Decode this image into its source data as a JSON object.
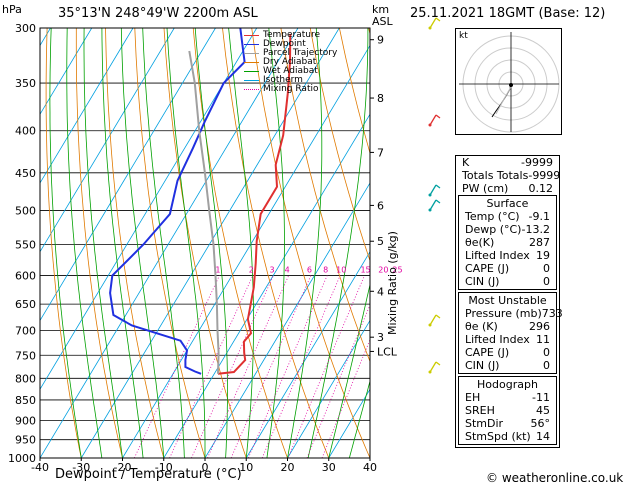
{
  "header": {
    "pressure_unit": "hPa",
    "location": "35°13'N 248°49'W 2200m ASL",
    "km_unit": "km",
    "asl_unit": "ASL",
    "datetime": "25.11.2021 18GMT (Base: 12)"
  },
  "chart_data": {
    "type": "line",
    "title": "35°13'N 248°49'W 2200m ASL",
    "xlabel": "Dewpoint / Temperature (°C)",
    "ylabel": "hPa",
    "y_scale": "log",
    "y_ticks": [
      300,
      350,
      400,
      450,
      500,
      550,
      600,
      650,
      700,
      750,
      800,
      850,
      900,
      950,
      1000
    ],
    "x_ticks": [
      -40,
      -30,
      -20,
      -10,
      0,
      10,
      20,
      30,
      40
    ],
    "xlim": [
      -40,
      40
    ],
    "ylim": [
      1000,
      300
    ],
    "km_ticks": [
      {
        "label": "9",
        "p": 310
      },
      {
        "label": "8",
        "p": 365
      },
      {
        "label": "7",
        "p": 425
      },
      {
        "label": "6",
        "p": 493
      },
      {
        "label": "5",
        "p": 545
      },
      {
        "label": "4",
        "p": 627
      },
      {
        "label": "3",
        "p": 713
      },
      {
        "label": "LCL",
        "p": 742
      }
    ],
    "secondary_ylabel": "Mixing Ratio (g/kg)",
    "mixing_ratio_labels": [
      "1",
      "2",
      "3",
      "4",
      "6",
      "8",
      "10",
      "15",
      "20",
      "25"
    ],
    "series": [
      {
        "name": "Temperature",
        "color": "#e03030",
        "points": [
          [
            -9.1,
            790
          ],
          [
            -5.5,
            786
          ],
          [
            -4.5,
            760
          ],
          [
            -5.8,
            745
          ],
          [
            -7.5,
            722
          ],
          [
            -7,
            705
          ],
          [
            -9.8,
            678
          ],
          [
            -13,
            620
          ],
          [
            -16,
            580
          ],
          [
            -19,
            545
          ],
          [
            -22,
            505
          ],
          [
            -22,
            468
          ],
          [
            -25.5,
            440
          ],
          [
            -28,
            405
          ],
          [
            -33,
            360
          ],
          [
            -37,
            330
          ],
          [
            -41,
            305
          ]
        ]
      },
      {
        "name": "Dewpoint",
        "color": "#2030e0",
        "points": [
          [
            -13.2,
            790
          ],
          [
            -15,
            785
          ],
          [
            -18,
            775
          ],
          [
            -19,
            760
          ],
          [
            -20,
            740
          ],
          [
            -23,
            720
          ],
          [
            -37,
            690
          ],
          [
            -43,
            670
          ],
          [
            -47,
            630
          ],
          [
            -49,
            600
          ],
          [
            -46,
            550
          ],
          [
            -44,
            505
          ],
          [
            -47,
            460
          ],
          [
            -48,
            420
          ],
          [
            -49,
            390
          ],
          [
            -50,
            350
          ],
          [
            -48,
            330
          ],
          [
            -54,
            300
          ]
        ]
      },
      {
        "name": "Parcel Trajectory",
        "color": "#a0a0a0",
        "points": [
          [
            -9.1,
            790
          ],
          [
            -12,
            745
          ],
          [
            -15.5,
            700
          ],
          [
            -19.5,
            650
          ],
          [
            -24,
            600
          ],
          [
            -29,
            550
          ],
          [
            -35,
            500
          ],
          [
            -41.5,
            450
          ],
          [
            -49,
            400
          ],
          [
            -57,
            350
          ],
          [
            -63,
            320
          ]
        ]
      }
    ],
    "legend": [
      "Temperature",
      "Dewpoint",
      "Parcel Trajectory",
      "Dry Adiabat",
      "Wet Adiabat",
      "Isotherm",
      "Mixing Ratio"
    ],
    "legend_colors": [
      "#e03030",
      "#2030e0",
      "#a0a0a0",
      "#e07a00",
      "#00a000",
      "#00a0e0",
      "#e000a0"
    ],
    "legend_placement": "top-left"
  },
  "hodograph": {
    "unit": "kt"
  },
  "indices": [
    {
      "label": "K",
      "value": "-9999"
    },
    {
      "label": "Totals Totals",
      "value": "-9999"
    },
    {
      "label": "PW (cm)",
      "value": "0.12"
    }
  ],
  "surface": {
    "title": "Surface",
    "rows": [
      {
        "label": "Temp (°C)",
        "value": "-9.1"
      },
      {
        "label": "Dewp (°C)",
        "value": "-13.2"
      },
      {
        "label": "θe(K)",
        "value": "287"
      },
      {
        "label": "Lifted Index",
        "value": "19"
      },
      {
        "label": "CAPE (J)",
        "value": "0"
      },
      {
        "label": "CIN (J)",
        "value": "0"
      }
    ]
  },
  "most_unstable": {
    "title": "Most Unstable",
    "rows": [
      {
        "label": "Pressure (mb)",
        "value": "733"
      },
      {
        "label": "θe (K)",
        "value": "296"
      },
      {
        "label": "Lifted Index",
        "value": "11"
      },
      {
        "label": "CAPE (J)",
        "value": "0"
      },
      {
        "label": "CIN (J)",
        "value": "0"
      }
    ]
  },
  "hodo_table": {
    "title": "Hodograph",
    "rows": [
      {
        "label": "EH",
        "value": "-11"
      },
      {
        "label": "SREH",
        "value": "45"
      },
      {
        "label": "StmDir",
        "value": "56°"
      },
      {
        "label": "StmSpd (kt)",
        "value": "14"
      }
    ]
  },
  "footer": {
    "copyright": "© weatheronline.co.uk"
  }
}
